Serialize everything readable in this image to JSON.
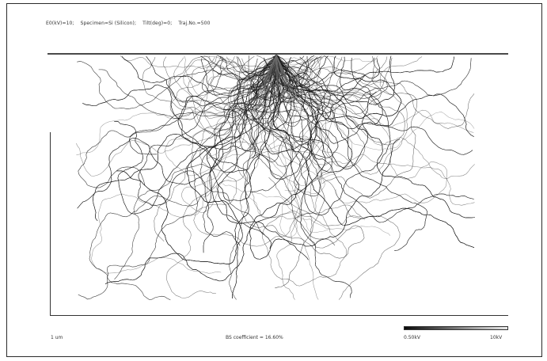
{
  "header": {
    "beam_energy": "E0(kV)=10;",
    "specimen": "Specimen=Si (Silicon);",
    "tilt": "Tilt(deg)=0;",
    "trajectories": "Traj.No.=500"
  },
  "scale": {
    "label": "1 um"
  },
  "result": {
    "bs_coefficient": "BS coefficient = 16.60%"
  },
  "energy_legend": {
    "min_label": "0.50kV",
    "max_label": "10kV"
  },
  "colors": {
    "trajectory": "#1a1a1a",
    "surface": "#4a4a4a"
  }
}
